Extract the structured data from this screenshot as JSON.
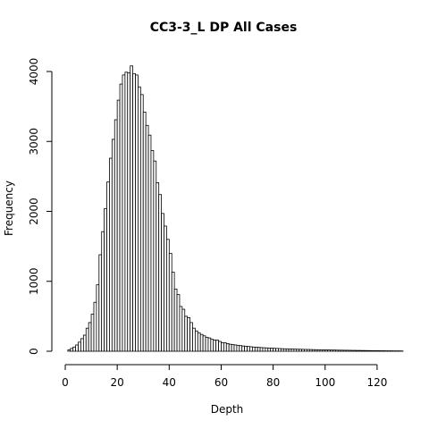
{
  "chart_data": {
    "type": "bar",
    "title": "CC3-3_L DP All Cases",
    "xlabel": "Depth",
    "ylabel": "Frequency",
    "xlim": [
      0,
      130
    ],
    "ylim": [
      0,
      4100
    ],
    "x_ticks": [
      0,
      20,
      40,
      60,
      80,
      100,
      120
    ],
    "y_ticks": [
      0,
      1000,
      2000,
      3000,
      4000
    ],
    "bin_width": 1,
    "bin_start": 0,
    "grid": false,
    "values": [
      0,
      20,
      40,
      60,
      90,
      130,
      180,
      230,
      330,
      410,
      530,
      700,
      950,
      1380,
      1710,
      2040,
      2420,
      2760,
      3030,
      3310,
      3590,
      3820,
      3950,
      3990,
      3980,
      4080,
      3970,
      3950,
      3780,
      3670,
      3420,
      3230,
      3090,
      2870,
      2720,
      2410,
      2240,
      1970,
      1790,
      1600,
      1400,
      1130,
      890,
      810,
      640,
      600,
      500,
      480,
      410,
      330,
      290,
      260,
      240,
      220,
      200,
      190,
      170,
      160,
      160,
      140,
      120,
      120,
      110,
      100,
      95,
      90,
      85,
      80,
      75,
      72,
      68,
      64,
      60,
      58,
      55,
      52,
      50,
      48,
      46,
      44,
      42,
      40,
      38,
      36,
      35,
      34,
      33,
      32,
      30,
      29,
      28,
      27,
      26,
      25,
      24,
      23,
      22,
      21,
      20,
      20,
      19,
      18,
      17,
      17,
      16,
      15,
      15,
      14,
      14,
      13,
      12,
      12,
      11,
      11,
      10,
      10,
      9,
      9,
      8,
      8,
      8,
      7,
      7,
      6,
      6,
      6,
      5,
      5,
      5,
      4
    ]
  }
}
